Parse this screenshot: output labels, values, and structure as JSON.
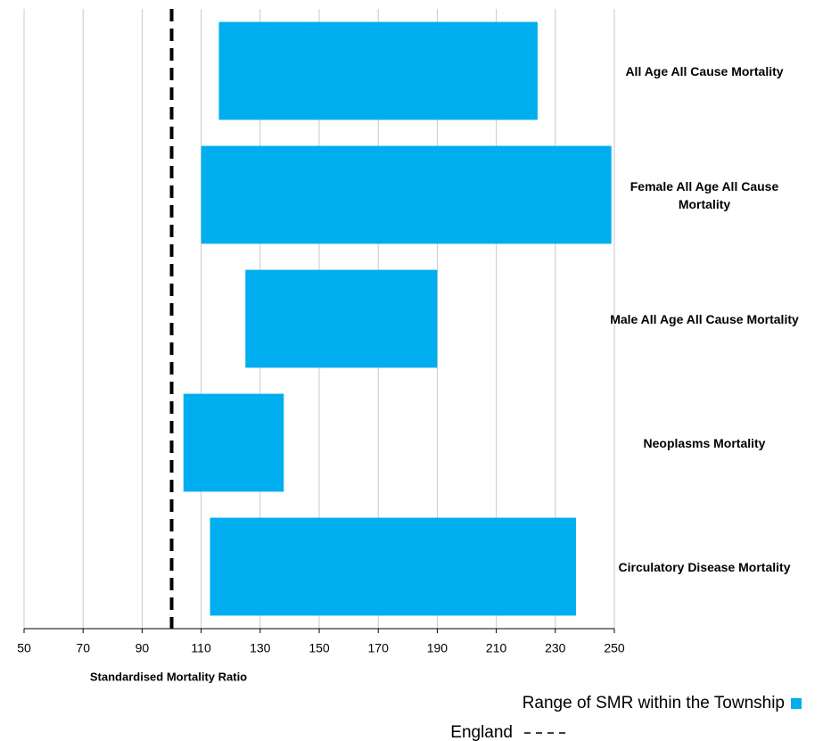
{
  "chart_data": {
    "type": "range_bar",
    "categories": [
      "All Age All Cause Mortality",
      "Female All Age All Cause Mortality",
      "Male All Age All Cause Mortality",
      "Neoplasms Mortality",
      "Circulatory Disease Mortality"
    ],
    "series": [
      {
        "name": "Range of SMR within the Township",
        "color": "#00aeef",
        "low": [
          116,
          110,
          125,
          104,
          113
        ],
        "high": [
          224,
          249,
          190,
          138,
          237
        ]
      }
    ],
    "reference_line": {
      "name": "England",
      "value": 100
    },
    "x_label": "Standardised Mortality Ratio",
    "xlim": [
      50,
      250
    ],
    "xticks": [
      50,
      70,
      90,
      110,
      130,
      150,
      170,
      190,
      210,
      230,
      250
    ],
    "grid": true
  }
}
